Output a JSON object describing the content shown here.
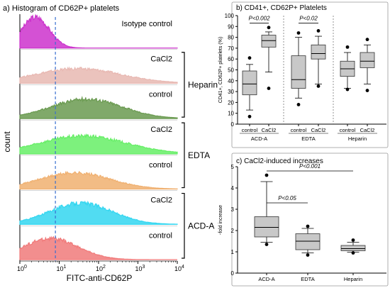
{
  "chart_data": [
    {
      "type": "area",
      "panel": "a",
      "title": "a) Histogram of CD62P+ platelets",
      "xlabel": "FITC-anti-CD62P",
      "ylabel": "count",
      "xscale": "log",
      "xlim": [
        1,
        10000
      ],
      "x_ticks": [
        "10^0",
        "10^1",
        "10^2",
        "10^3",
        "10^4"
      ],
      "threshold_x": 8,
      "tracks": [
        {
          "label": "Isotype control",
          "group": "",
          "color": "#cc33cc",
          "peak": 2.5,
          "spread": 0.35,
          "height": 0.95
        },
        {
          "label": "CaCl2",
          "group": "Heparin",
          "color": "#e8b8b2",
          "peak": 30,
          "spread": 1.1,
          "height": 0.45
        },
        {
          "label": "control",
          "group": "Heparin",
          "color": "#6a9a50",
          "peak": 50,
          "spread": 0.9,
          "height": 0.6
        },
        {
          "label": "CaCl2",
          "group": "EDTA",
          "color": "#66ee66",
          "peak": 40,
          "spread": 1.1,
          "height": 0.55
        },
        {
          "label": "control",
          "group": "EDTA",
          "color": "#f0b070",
          "peak": 25,
          "spread": 0.9,
          "height": 0.5
        },
        {
          "label": "CaCl2",
          "group": "ACD-A",
          "color": "#33d6f0",
          "peak": 35,
          "spread": 0.8,
          "height": 0.65
        },
        {
          "label": "control",
          "group": "ACD-A",
          "color": "#f07a7a",
          "peak": 6,
          "spread": 0.7,
          "height": 0.65
        }
      ],
      "groups": [
        "Heparin",
        "EDTA",
        "ACD-A"
      ]
    },
    {
      "type": "box",
      "panel": "b",
      "title": "b) CD41+, CD62P+ Platelets",
      "ylabel": "CD41+, CD62P+ platelets (%)",
      "ylim": [
        0,
        100
      ],
      "yticks": [
        0,
        10,
        20,
        30,
        40,
        50,
        60,
        70,
        80,
        90,
        100
      ],
      "groups": [
        "ACD-A",
        "EDTA",
        "Heparin"
      ],
      "boxes": [
        {
          "group": "ACD-A",
          "label": "control",
          "whisker_low": 13,
          "q1": 27,
          "median": 37,
          "q3": 49,
          "whisker_high": 55,
          "outliers": [
            7,
            61
          ]
        },
        {
          "group": "ACD-A",
          "label": "CaCl2",
          "whisker_low": 48,
          "q1": 71,
          "median": 77,
          "q3": 82,
          "whisker_high": 85,
          "outliers": [
            33,
            89
          ]
        },
        {
          "group": "EDTA",
          "label": "control",
          "whisker_low": 24,
          "q1": 33,
          "median": 41,
          "q3": 63,
          "whisker_high": 80,
          "outliers": [
            18,
            84
          ]
        },
        {
          "group": "EDTA",
          "label": "CaCl2",
          "whisker_low": 37,
          "q1": 60,
          "median": 65,
          "q3": 73,
          "whisker_high": 81,
          "outliers": [
            35,
            86
          ]
        },
        {
          "group": "Heparin",
          "label": "control",
          "whisker_low": 33,
          "q1": 44,
          "median": 51,
          "q3": 58,
          "whisker_high": 66,
          "outliers": [
            32,
            71
          ]
        },
        {
          "group": "Heparin",
          "label": "CaCl2",
          "whisker_low": 37,
          "q1": 52,
          "median": 58,
          "q3": 66,
          "whisker_high": 73,
          "outliers": [
            31,
            78
          ]
        }
      ],
      "annotations": [
        {
          "text": "P<0.002",
          "from": 0,
          "to": 1,
          "y": 93
        },
        {
          "text": "P<0.02",
          "from": 2,
          "to": 3,
          "y": 93
        }
      ]
    },
    {
      "type": "box",
      "panel": "c",
      "title": "c) CaCl2-induced increases",
      "ylabel": "-fold increase",
      "ylim": [
        0,
        5
      ],
      "yticks": [
        0,
        1,
        2,
        3,
        4,
        5
      ],
      "categories": [
        "ACD-A",
        "EDTA",
        "Heparin"
      ],
      "boxes": [
        {
          "label": "ACD-A",
          "whisker_low": 1.45,
          "q1": 1.7,
          "median": 2.15,
          "q3": 2.65,
          "whisker_high": 4.3,
          "outliers": [
            1.35,
            4.6
          ]
        },
        {
          "label": "EDTA",
          "whisker_low": 0.95,
          "q1": 1.1,
          "median": 1.5,
          "q3": 1.85,
          "whisker_high": 2.1,
          "outliers": [
            0.85,
            2.2
          ]
        },
        {
          "label": "Heparin",
          "whisker_low": 0.98,
          "q1": 1.05,
          "median": 1.15,
          "q3": 1.3,
          "whisker_high": 1.45,
          "outliers": [
            0.95,
            1.55
          ]
        }
      ],
      "annotations": [
        {
          "text": "P<0.05",
          "from": 0,
          "to": 1,
          "y": 3.3
        },
        {
          "text": "P<0.001",
          "from": 0,
          "to": 2,
          "y": 4.8
        }
      ]
    }
  ]
}
